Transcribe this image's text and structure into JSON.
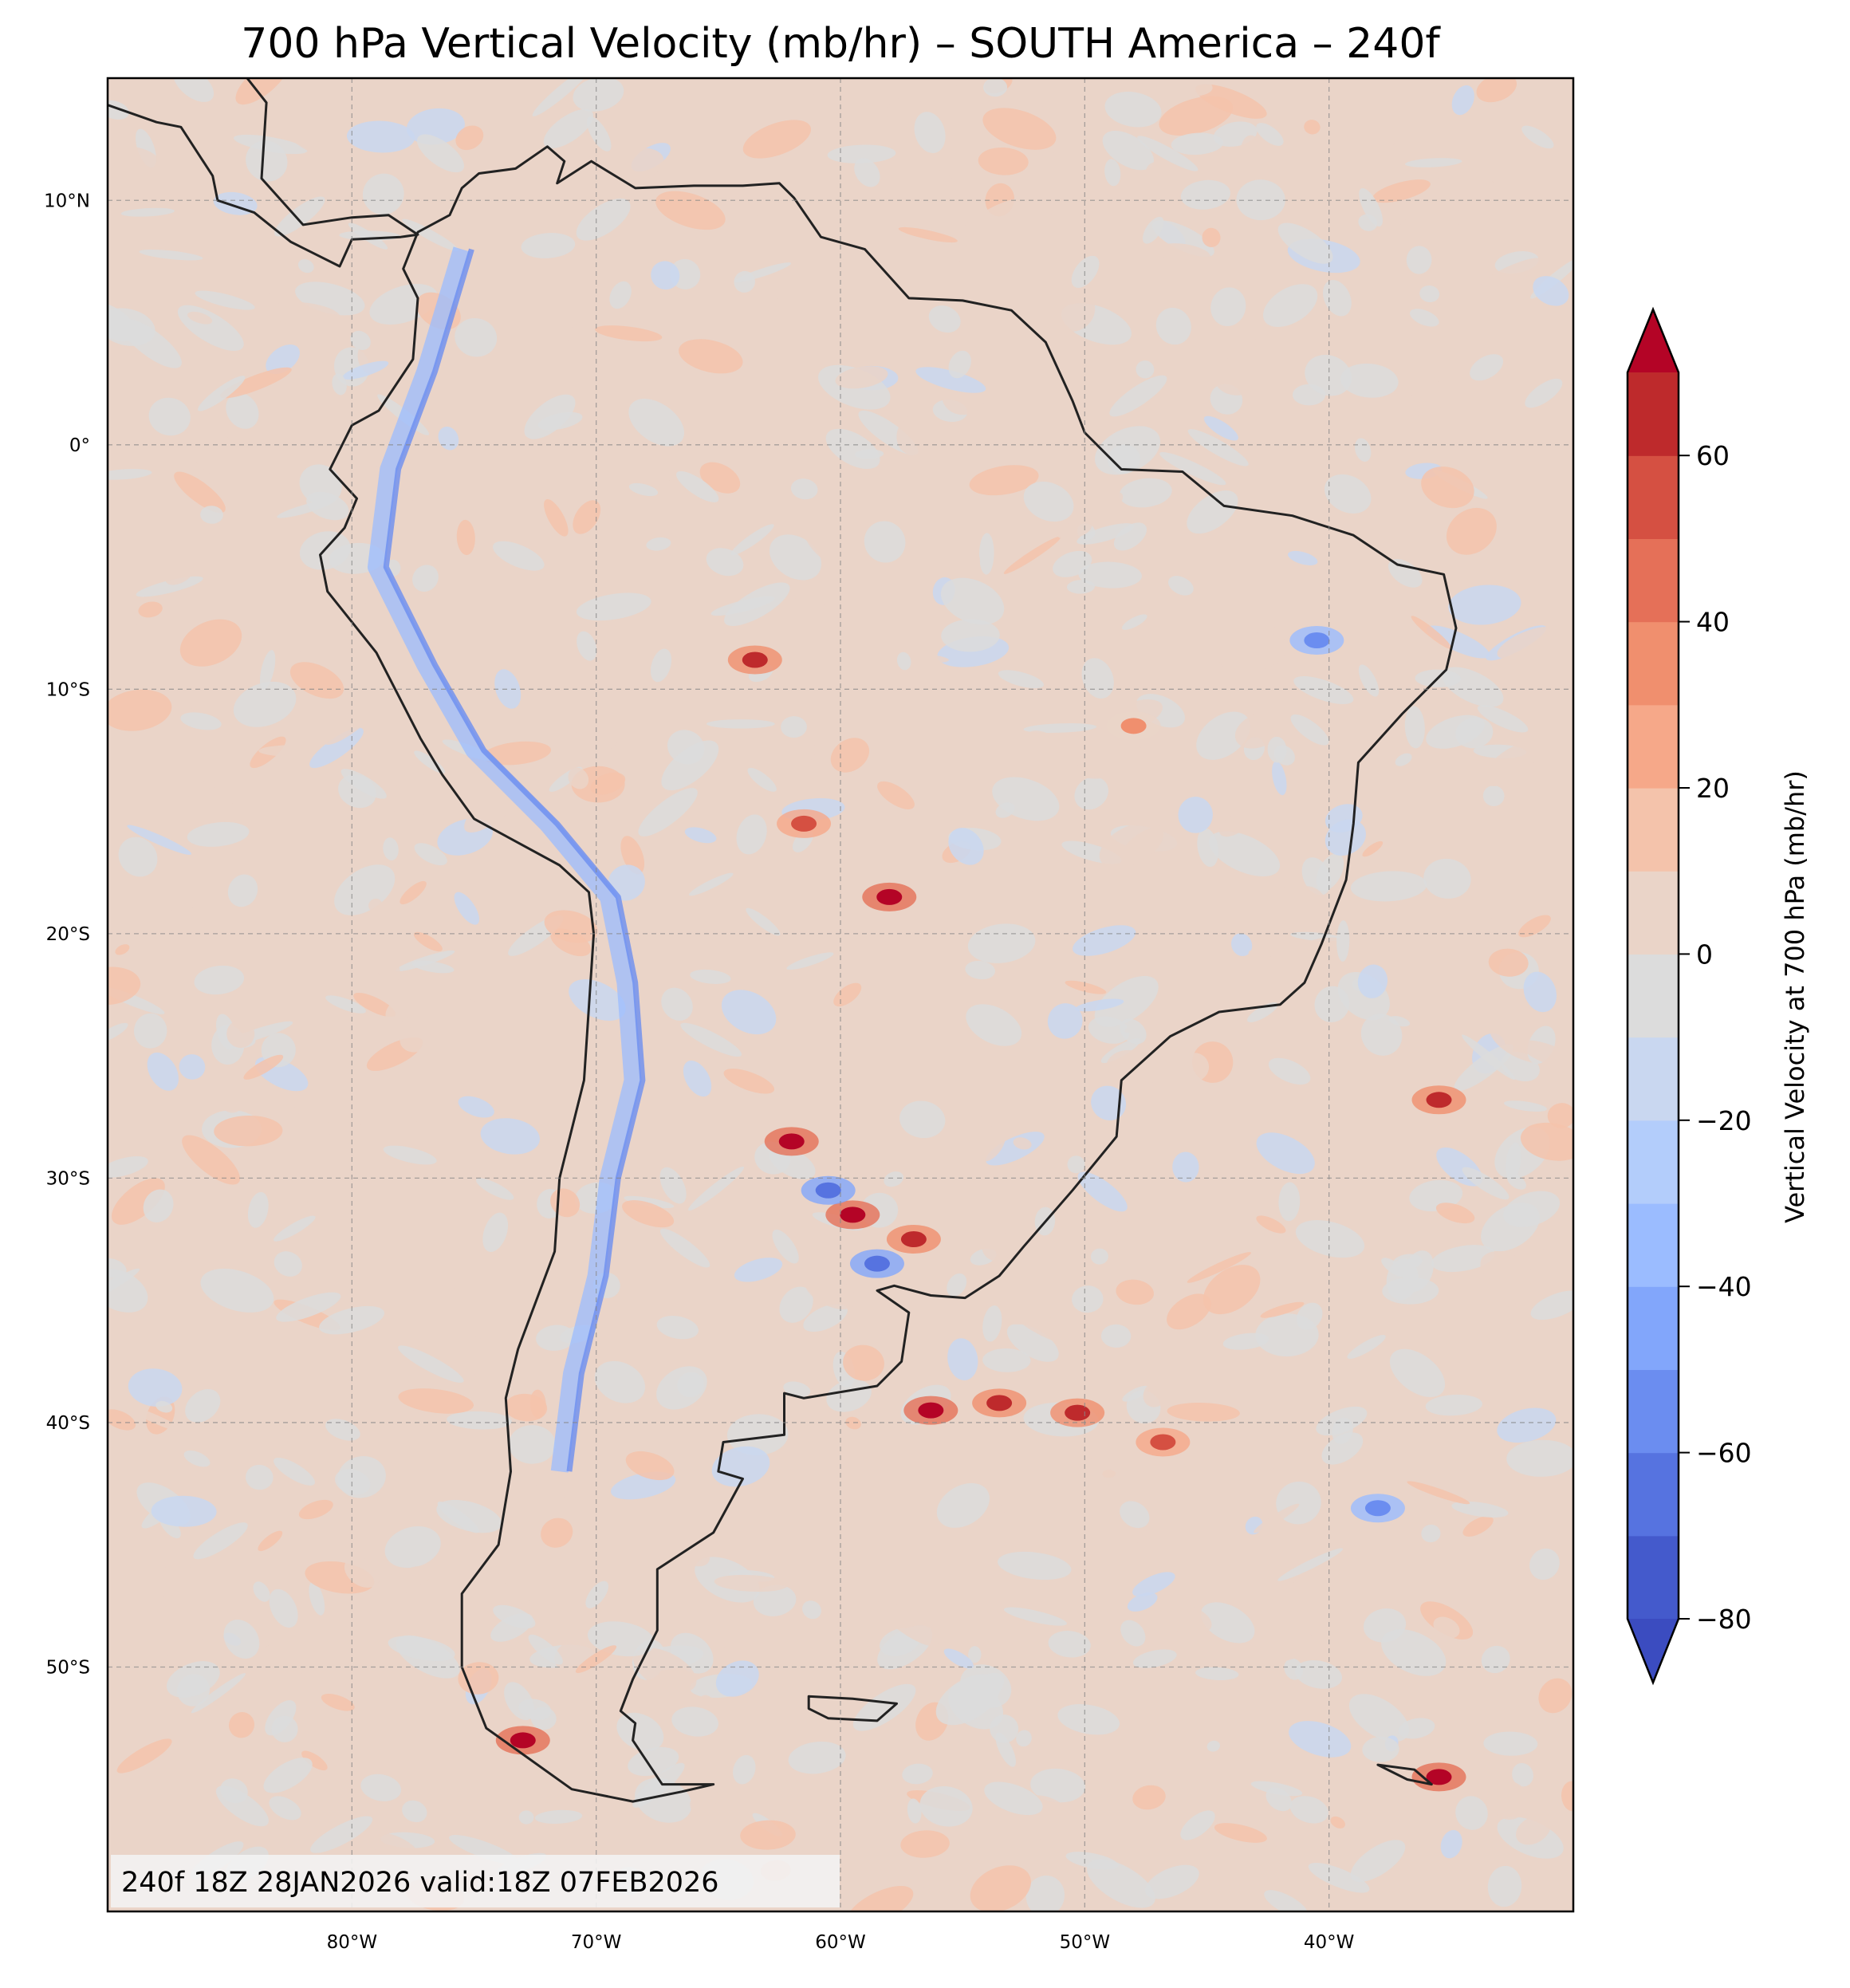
{
  "chart_data": {
    "type": "heatmap",
    "title": "700 hPa Vertical Velocity (mb/hr) – SOUTH America – 240f",
    "annotation": "240f 18Z 28JAN2026 valid:18Z 07FEB2026",
    "extent": {
      "lon": [
        -90,
        -30
      ],
      "lat": [
        -60,
        15
      ]
    },
    "grid": true,
    "x_ticks": [
      {
        "value": -80,
        "label": "80°W"
      },
      {
        "value": -70,
        "label": "70°W"
      },
      {
        "value": -60,
        "label": "60°W"
      },
      {
        "value": -50,
        "label": "50°W"
      },
      {
        "value": -40,
        "label": "40°W"
      }
    ],
    "y_ticks": [
      {
        "value": 10,
        "label": "10°N"
      },
      {
        "value": 0,
        "label": "0°"
      },
      {
        "value": -10,
        "label": "10°S"
      },
      {
        "value": -20,
        "label": "20°S"
      },
      {
        "value": -30,
        "label": "30°S"
      },
      {
        "value": -40,
        "label": "40°S"
      },
      {
        "value": -50,
        "label": "50°S"
      }
    ],
    "colorbar": {
      "label": "Vertical Velocity at 700 hPa (mb/hr)",
      "location": "right",
      "extend": "both",
      "levels": [
        -80,
        -70,
        -60,
        -50,
        -40,
        -30,
        -20,
        -10,
        0,
        10,
        20,
        30,
        40,
        50,
        60,
        70
      ],
      "colors": [
        "#445acc",
        "#5673e0",
        "#6b8df0",
        "#82a6fb",
        "#9bbcff",
        "#b3cdfb",
        "#c9d7f0",
        "#dcdcdc",
        "#ead4c8",
        "#f4c3ab",
        "#f6a889",
        "#f08f6e",
        "#e57058",
        "#d55042",
        "#be2a2c"
      ],
      "under_color": "#3b4cc0",
      "over_color": "#b40426",
      "ticks": [
        {
          "value": 60,
          "label": "60"
        },
        {
          "value": 40,
          "label": "40"
        },
        {
          "value": 20,
          "label": "20"
        },
        {
          "value": 0,
          "label": "0"
        },
        {
          "value": -20,
          "label": "−20"
        },
        {
          "value": -40,
          "label": "−40"
        },
        {
          "value": -60,
          "label": "−60"
        },
        {
          "value": -80,
          "label": "−80"
        }
      ]
    },
    "notable_cells": [
      {
        "lon": -63.5,
        "lat": -8.8,
        "value": 60
      },
      {
        "lon": -58.0,
        "lat": -18.5,
        "value": 70
      },
      {
        "lon": -61.5,
        "lat": -15.5,
        "value": 50
      },
      {
        "lon": -62.0,
        "lat": -28.5,
        "value": 70
      },
      {
        "lon": -59.5,
        "lat": -31.5,
        "value": 70
      },
      {
        "lon": -57.0,
        "lat": -32.5,
        "value": 60
      },
      {
        "lon": -60.5,
        "lat": -30.5,
        "value": -70
      },
      {
        "lon": -58.5,
        "lat": -33.5,
        "value": -70
      },
      {
        "lon": -56.3,
        "lat": -39.5,
        "value": 70
      },
      {
        "lon": -50.3,
        "lat": -39.6,
        "value": 60
      },
      {
        "lon": -53.5,
        "lat": -39.2,
        "value": 60
      },
      {
        "lon": -46.8,
        "lat": -40.8,
        "value": 50
      },
      {
        "lon": -38.0,
        "lat": -43.5,
        "value": -60
      },
      {
        "lon": -35.5,
        "lat": -26.8,
        "value": 60
      },
      {
        "lon": -40.5,
        "lat": -8.0,
        "value": -60
      },
      {
        "lon": -48.0,
        "lat": -11.5,
        "value": 30
      },
      {
        "lon": -35.5,
        "lat": -54.5,
        "value": 70
      },
      {
        "lon": -73.0,
        "lat": -53.0,
        "value": 70
      }
    ]
  }
}
